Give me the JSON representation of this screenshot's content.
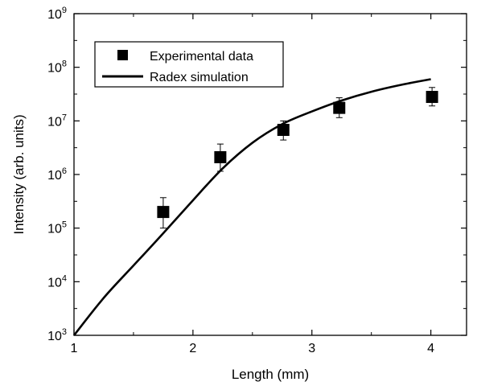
{
  "chart_data": {
    "type": "scatter",
    "xlabel": "Length (mm)",
    "ylabel": "Intensity (arb. units)",
    "xlim": [
      1,
      4.3
    ],
    "ylim": [
      1000,
      1000000000
    ],
    "y_scale": "log",
    "x_ticks": [
      {
        "value": 1,
        "label": "1"
      },
      {
        "value": 2,
        "label": "2"
      },
      {
        "value": 3,
        "label": "3"
      },
      {
        "value": 4,
        "label": "4"
      }
    ],
    "y_ticks": [
      {
        "value": 1000,
        "base": "10",
        "exp": "3"
      },
      {
        "value": 10000,
        "base": "10",
        "exp": "4"
      },
      {
        "value": 100000,
        "base": "10",
        "exp": "5"
      },
      {
        "value": 1000000,
        "base": "10",
        "exp": "6"
      },
      {
        "value": 10000000,
        "base": "10",
        "exp": "7"
      },
      {
        "value": 100000000,
        "base": "10",
        "exp": "8"
      },
      {
        "value": 1000000000,
        "base": "10",
        "exp": "9"
      }
    ],
    "legend": {
      "placement": "top-left",
      "entries": [
        "Experimental data",
        "Radex simulation"
      ]
    },
    "series": [
      {
        "name": "Experimental data",
        "kind": "points-with-errorbars",
        "marker": "square",
        "points": [
          {
            "x": 1.75,
            "y": 200000,
            "y_low": 100000,
            "y_high": 370000
          },
          {
            "x": 2.23,
            "y": 2100000,
            "y_low": 1150000,
            "y_high": 3700000
          },
          {
            "x": 2.76,
            "y": 6800000,
            "y_low": 4400000,
            "y_high": 10000000
          },
          {
            "x": 3.23,
            "y": 17500000,
            "y_low": 11500000,
            "y_high": 27000000
          },
          {
            "x": 4.01,
            "y": 28000000,
            "y_low": 19000000,
            "y_high": 42000000
          }
        ]
      },
      {
        "name": "Radex simulation",
        "kind": "line",
        "points": [
          {
            "x": 1.0,
            "y": 1000
          },
          {
            "x": 1.25,
            "y": 5000
          },
          {
            "x": 1.5,
            "y": 20000
          },
          {
            "x": 1.75,
            "y": 80000
          },
          {
            "x": 2.0,
            "y": 330000
          },
          {
            "x": 2.25,
            "y": 1300000
          },
          {
            "x": 2.5,
            "y": 3900000
          },
          {
            "x": 2.75,
            "y": 8700000
          },
          {
            "x": 3.0,
            "y": 15000000
          },
          {
            "x": 3.25,
            "y": 24000000
          },
          {
            "x": 3.5,
            "y": 35000000
          },
          {
            "x": 3.75,
            "y": 47000000
          },
          {
            "x": 4.0,
            "y": 60000000
          }
        ]
      }
    ],
    "grid": false,
    "colors": {
      "marks": "#000000",
      "background": "#ffffff"
    }
  }
}
